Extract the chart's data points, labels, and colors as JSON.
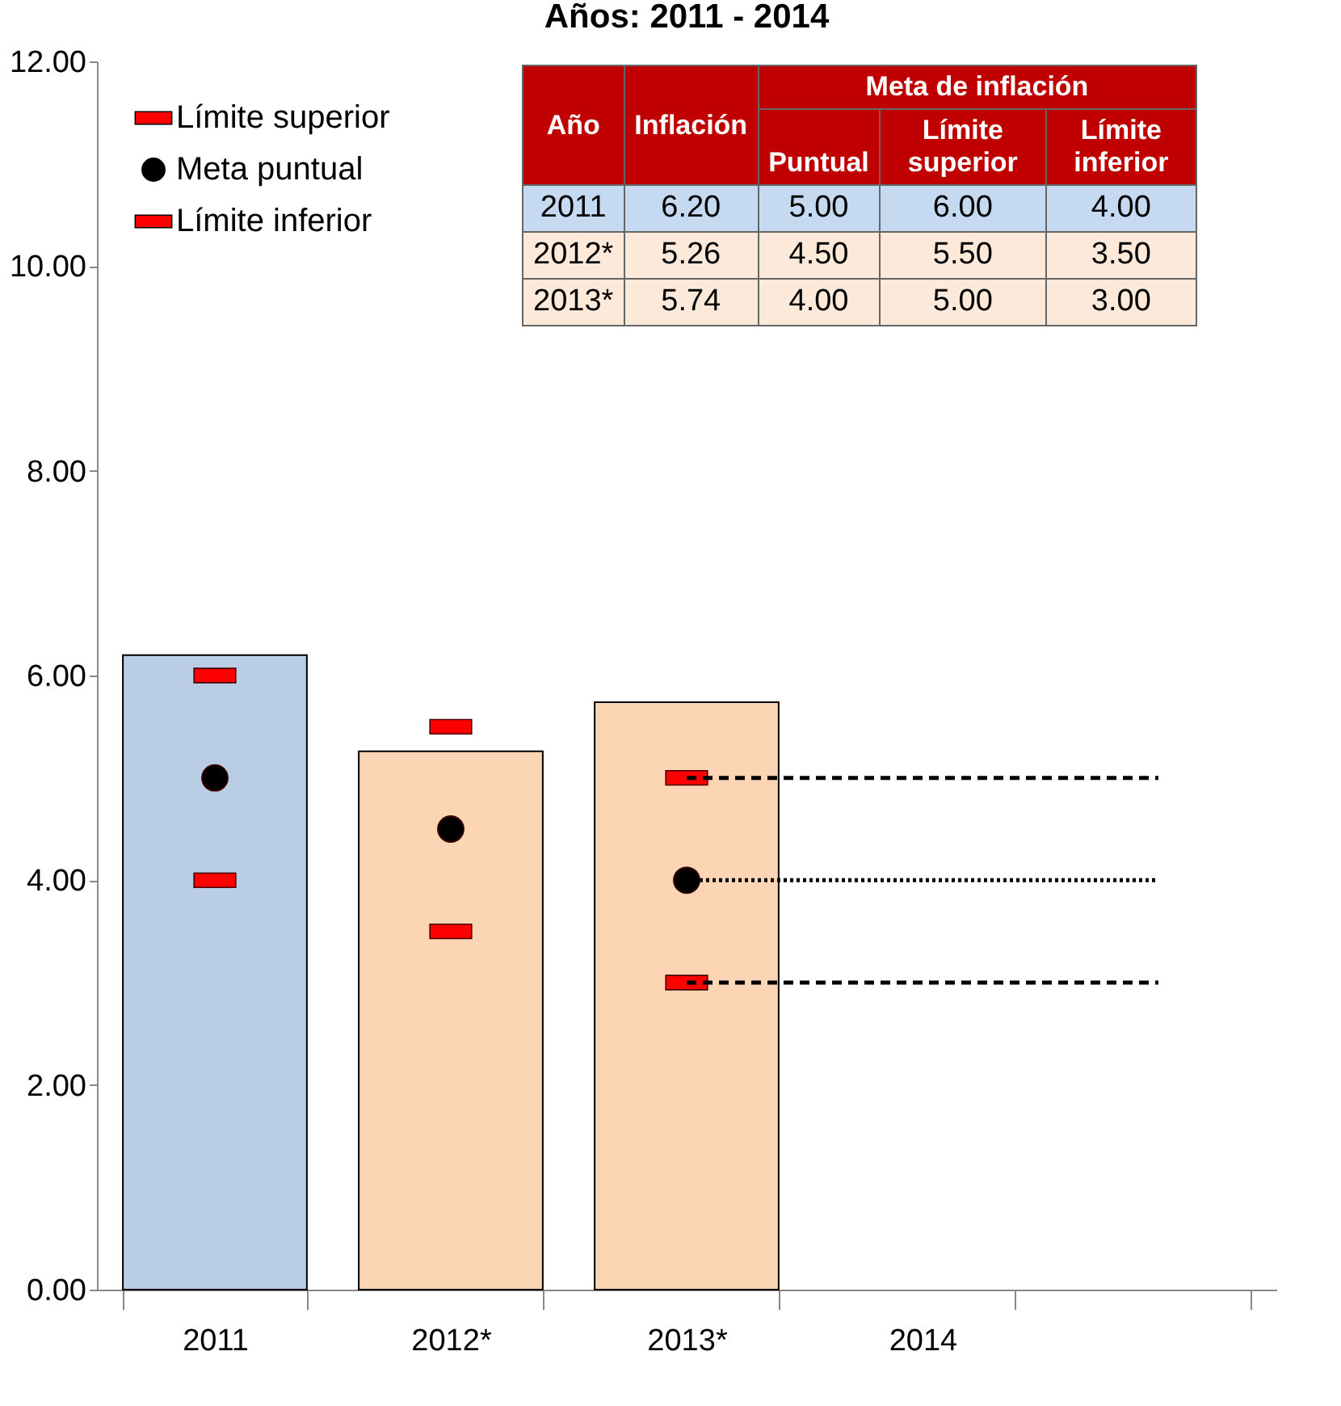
{
  "chart_data": [
    {
      "type": "bar",
      "title": "Años: 2011 - 2014",
      "categories": [
        "2011",
        "2012*",
        "2013*",
        "2014",
        null
      ],
      "series": [
        {
          "colors": [
            "#b9cde5",
            "#fcd5b5",
            "#fcd5b5",
            null,
            null
          ],
          "values": [
            6.2,
            5.26,
            5.74,
            null,
            null
          ]
        },
        {
          "type": "scatter",
          "name": "Límite superior",
          "color": "#ff0000",
          "marker": "square",
          "values": [
            6,
            5.5,
            5,
            null,
            null
          ]
        },
        {
          "type": "scatter",
          "name": "Meta puntual",
          "color": "#000000",
          "marker": "circle",
          "values": [
            5,
            4.5,
            4,
            null,
            null
          ]
        },
        {
          "type": "scatter",
          "name": "Límite inferior",
          "color": "#ff0000",
          "marker": "square",
          "values": [
            4,
            3.5,
            3,
            null,
            null
          ]
        },
        {
          "type": "line",
          "color": "#000000",
          "line_style": "dashed",
          "values": [
            null,
            null,
            5,
            5,
            5
          ]
        },
        {
          "type": "line",
          "color": "#000000",
          "line_style": "dotted",
          "values": [
            null,
            null,
            4,
            4,
            4
          ]
        },
        {
          "type": "line",
          "color": "#000000",
          "line_style": "dashed",
          "values": [
            null,
            null,
            3,
            3,
            3
          ]
        }
      ],
      "ylim": [
        0,
        12
      ],
      "yticks": [
        {
          "value": 0,
          "label": "0.00"
        },
        {
          "value": 2,
          "label": "2.00"
        },
        {
          "value": 4,
          "label": "4.00"
        },
        {
          "value": 6,
          "label": "6.00"
        },
        {
          "value": 8,
          "label": "8.00"
        },
        {
          "value": 10,
          "label": "10.00"
        },
        {
          "value": 12,
          "label": "12.00"
        }
      ],
      "grid": false,
      "legend": "top left"
    },
    {
      "type": "other",
      "annotations": [
        "Año",
        "Inflación",
        "Meta de inflación",
        "Puntual",
        "Límite superior",
        "Límite inferior",
        "2011",
        "6.20",
        "5.00",
        "6.00",
        "4.00",
        "2012*",
        "5.26",
        "4.50",
        "5.50",
        "3.50",
        "2013*",
        "5.74",
        "4.00",
        "5.00",
        "3.00"
      ]
    }
  ]
}
